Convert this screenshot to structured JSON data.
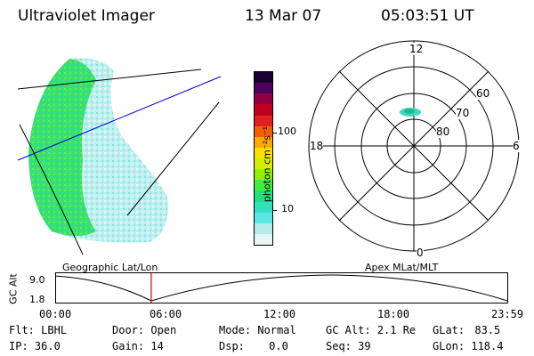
{
  "header": {
    "instrument": "Ultraviolet Imager",
    "date": "13 Mar 07",
    "time": "05:03:51 UT"
  },
  "colorbar": {
    "unit_label": "photon cm⁻²s⁻¹",
    "ticks": [
      "100",
      "10"
    ],
    "colors": [
      "#e6f6f6",
      "#b4ecec",
      "#5ce6e6",
      "#30e0c0",
      "#20e080",
      "#40ee40",
      "#90f000",
      "#d0f000",
      "#f8e000",
      "#ffa800",
      "#f06000",
      "#e02020",
      "#c00020",
      "#900040",
      "#500060",
      "#1a0030"
    ]
  },
  "polar": {
    "hour_labels": [
      "12",
      "18",
      "6",
      "0"
    ],
    "lat_labels": [
      "60",
      "70",
      "80"
    ]
  },
  "timeline": {
    "y_axis_label": "GC Alt",
    "y_ticks": [
      "9.0",
      "1.8"
    ],
    "left_caption": "Geographic Lat/Lon",
    "right_caption": "Apex MLat/MLT",
    "x_ticks": [
      "00:00",
      "06:00",
      "12:00",
      "18:00",
      "23:59"
    ],
    "current_time_fraction": 0.2109
  },
  "status": {
    "row1": [
      {
        "label": "Flt:",
        "value": "LBHL"
      },
      {
        "label": "Door:",
        "value": "Open"
      },
      {
        "label": "Mode:",
        "value": "Normal"
      },
      {
        "label": "GC Alt:",
        "value": "2.1 Re"
      },
      {
        "label": "GLat:",
        "value": "83.5"
      }
    ],
    "row2": [
      {
        "label": "IP:",
        "value": "36.0"
      },
      {
        "label": "Gain:",
        "value": "14"
      },
      {
        "label": "Dsp:",
        "value": "0.0"
      },
      {
        "label": "Seq:",
        "value": "39"
      },
      {
        "label": "GLon:",
        "value": "118.4"
      }
    ]
  },
  "colors": {
    "grid_line": "#0000cc",
    "marker": "#e00000"
  }
}
